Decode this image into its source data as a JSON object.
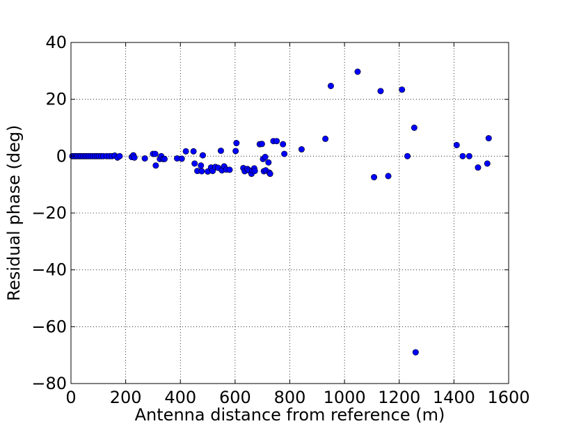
{
  "chart_data": {
    "type": "scatter",
    "title": "",
    "xlabel": "Antenna distance from reference (m)",
    "ylabel": "Residual phase (deg)",
    "xlim": [
      0,
      1600
    ],
    "ylim": [
      -80,
      40
    ],
    "grid": true,
    "x_ticks": [
      0,
      200,
      400,
      600,
      800,
      1000,
      1200,
      1400,
      1600
    ],
    "y_ticks": [
      -80,
      -60,
      -40,
      -20,
      0,
      20,
      40
    ],
    "x_tick_labels": [
      "0",
      "200",
      "400",
      "600",
      "800",
      "1000",
      "1200",
      "1400",
      "1600"
    ],
    "y_tick_labels": [
      "−80",
      "−60",
      "−40",
      "−20",
      "0",
      "20",
      "40"
    ],
    "series": [
      {
        "color": "#0000ff",
        "points": [
          [
            5,
            0
          ],
          [
            12,
            0
          ],
          [
            18,
            0
          ],
          [
            25,
            0
          ],
          [
            32,
            0
          ],
          [
            38,
            0
          ],
          [
            45,
            0
          ],
          [
            52,
            0
          ],
          [
            58,
            0
          ],
          [
            65,
            0
          ],
          [
            72,
            0
          ],
          [
            80,
            0
          ],
          [
            88,
            0
          ],
          [
            95,
            0
          ],
          [
            102,
            0
          ],
          [
            110,
            0
          ],
          [
            118,
            0
          ],
          [
            130,
            0
          ],
          [
            140,
            0
          ],
          [
            150,
            0
          ],
          [
            160,
            0.2
          ],
          [
            170,
            -0.5
          ],
          [
            178,
            0
          ],
          [
            222,
            -0.3
          ],
          [
            228,
            0.3
          ],
          [
            232,
            -0.5
          ],
          [
            270,
            -0.8
          ],
          [
            300,
            0.8
          ],
          [
            308,
            0.8
          ],
          [
            310,
            -3.3
          ],
          [
            325,
            -1
          ],
          [
            330,
            0
          ],
          [
            337,
            -1
          ],
          [
            342,
            -1
          ],
          [
            388,
            -0.8
          ],
          [
            405,
            -0.9
          ],
          [
            420,
            1.7
          ],
          [
            448,
            1.7
          ],
          [
            452,
            -2.6
          ],
          [
            462,
            -5.2
          ],
          [
            475,
            -3.3
          ],
          [
            478,
            -5.3
          ],
          [
            482,
            0.3
          ],
          [
            500,
            -5.4
          ],
          [
            512,
            -4
          ],
          [
            518,
            -5.2
          ],
          [
            528,
            -3.8
          ],
          [
            538,
            -4.1
          ],
          [
            548,
            1.9
          ],
          [
            552,
            -5
          ],
          [
            560,
            -3.6
          ],
          [
            568,
            -4.7
          ],
          [
            580,
            -4.8
          ],
          [
            602,
            1.8
          ],
          [
            605,
            4.6
          ],
          [
            630,
            -4.2
          ],
          [
            635,
            -5.3
          ],
          [
            645,
            -4.5
          ],
          [
            650,
            -5
          ],
          [
            660,
            -6.2
          ],
          [
            663,
            -5
          ],
          [
            670,
            -4.3
          ],
          [
            672,
            -5.2
          ],
          [
            690,
            4.2
          ],
          [
            698,
            4.3
          ],
          [
            702,
            -1
          ],
          [
            705,
            -5.3
          ],
          [
            710,
            -0.3
          ],
          [
            712,
            -5
          ],
          [
            722,
            -2.2
          ],
          [
            725,
            -5.8
          ],
          [
            728,
            -6.2
          ],
          [
            740,
            5.3
          ],
          [
            752,
            5.3
          ],
          [
            775,
            4.2
          ],
          [
            780,
            0.8
          ],
          [
            843,
            2.4
          ],
          [
            930,
            6.1
          ],
          [
            950,
            24.7
          ],
          [
            1048,
            29.7
          ],
          [
            1108,
            -7.4
          ],
          [
            1132,
            22.9
          ],
          [
            1160,
            -7
          ],
          [
            1210,
            23.4
          ],
          [
            1230,
            0
          ],
          [
            1255,
            10
          ],
          [
            1260,
            -69
          ],
          [
            1410,
            3.9
          ],
          [
            1432,
            0
          ],
          [
            1456,
            0
          ],
          [
            1488,
            -4
          ],
          [
            1522,
            -2.6
          ],
          [
            1527,
            6.3
          ]
        ]
      }
    ]
  }
}
